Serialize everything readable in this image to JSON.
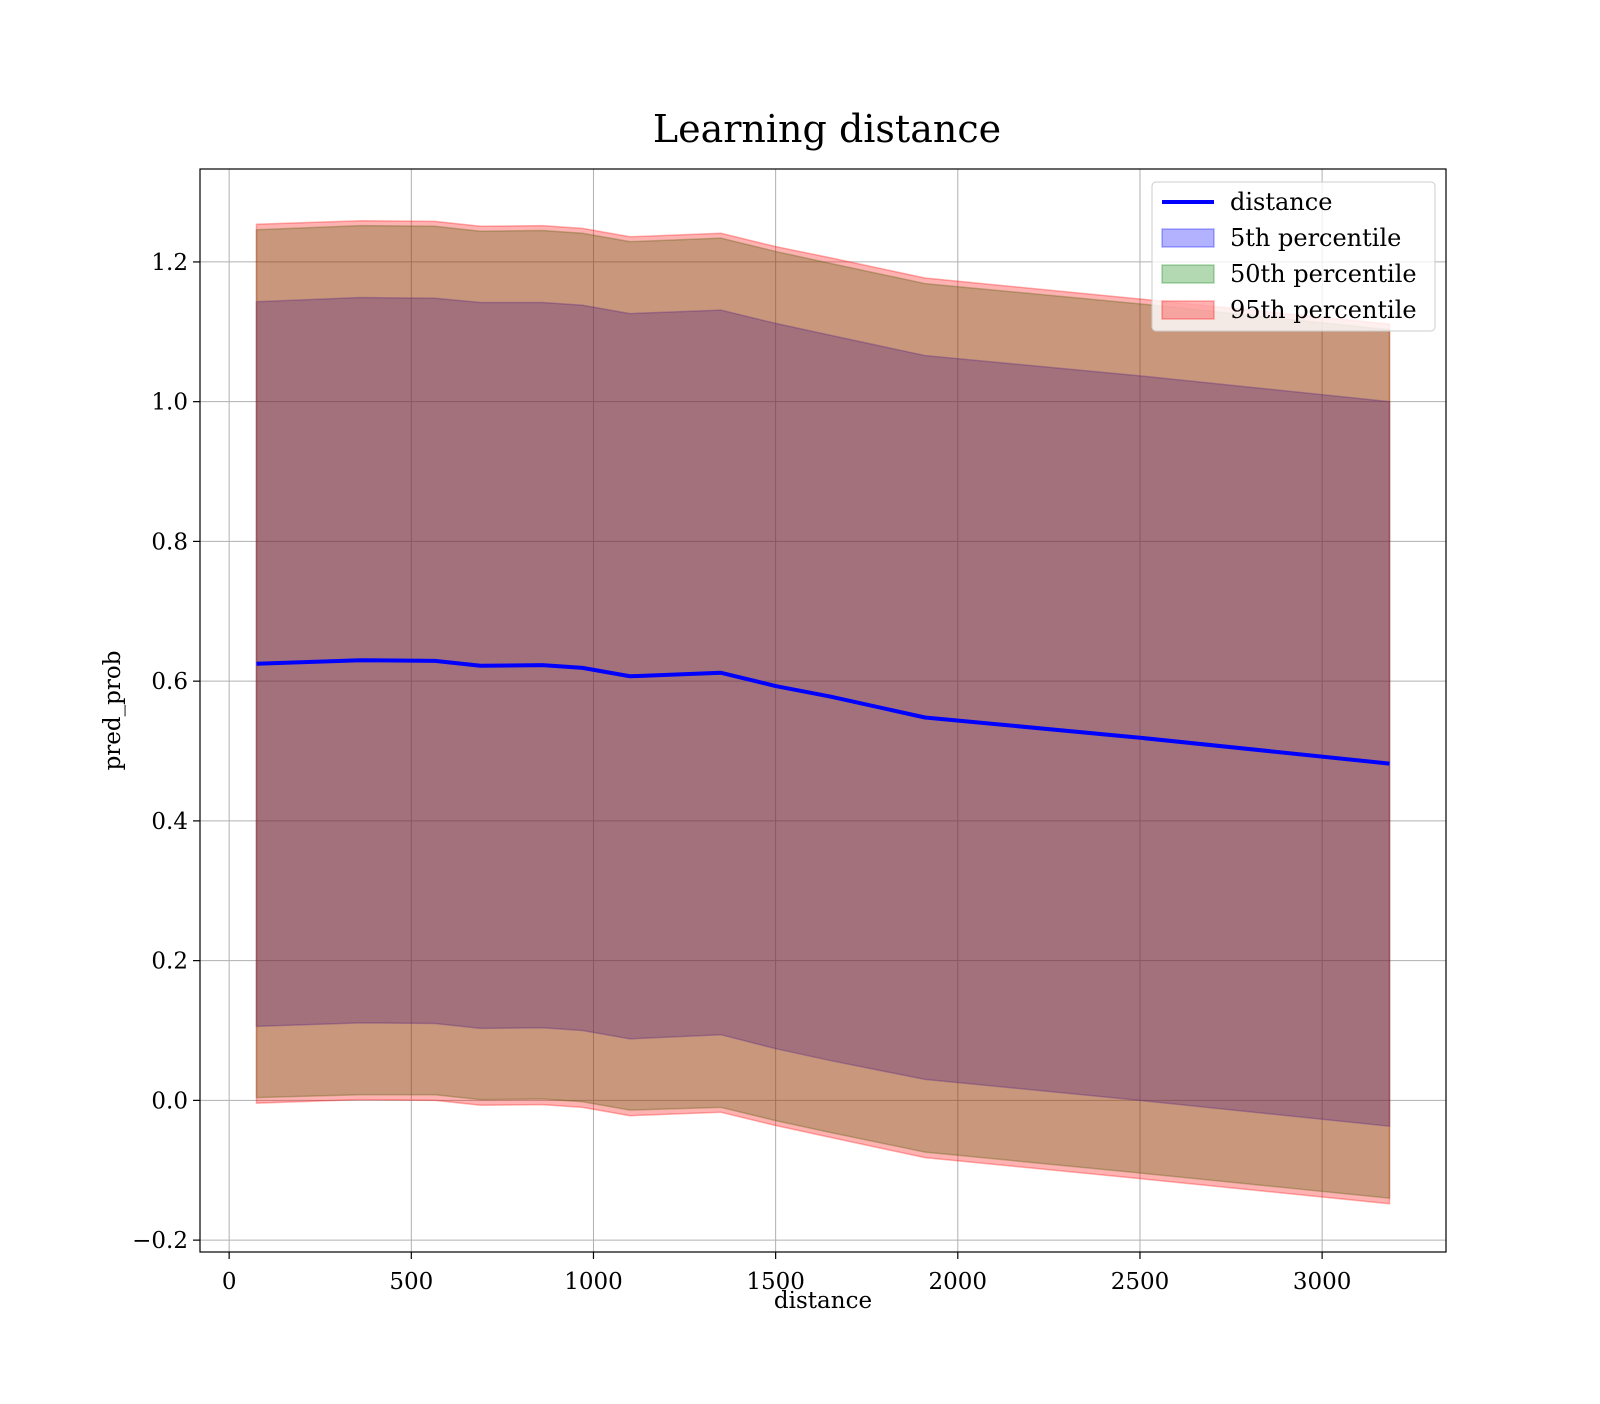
{
  "chart_data": {
    "type": "area",
    "title": "Learning distance",
    "xlabel": "distance",
    "ylabel": "pred_prob",
    "xlim": [
      -80,
      3340
    ],
    "ylim": [
      -0.217,
      1.333
    ],
    "x_ticks": [
      0,
      500,
      1000,
      1500,
      2000,
      2500,
      3000
    ],
    "x_tick_labels": [
      "0",
      "500",
      "1000",
      "1500",
      "2000",
      "2500",
      "3000"
    ],
    "y_ticks": [
      -0.2,
      0.0,
      0.2,
      0.4,
      0.6,
      0.8,
      1.0,
      1.2
    ],
    "y_tick_labels": [
      "−0.2",
      "0.0",
      "0.2",
      "0.4",
      "0.6",
      "0.8",
      "1.0",
      "1.2"
    ],
    "grid": true,
    "legend_position": "top-right",
    "x": [
      75,
      360,
      565,
      690,
      860,
      970,
      1100,
      1350,
      1500,
      1650,
      1910,
      2500,
      3185
    ],
    "series": [
      {
        "name": "distance",
        "kind": "line",
        "color": "#0000ff",
        "values": [
          0.625,
          0.63,
          0.629,
          0.622,
          0.623,
          0.619,
          0.607,
          0.612,
          0.593,
          0.578,
          0.548,
          0.519,
          0.482
        ]
      },
      {
        "name": "5th percentile",
        "kind": "band",
        "color": "#0000ff",
        "lower": [
          0.106,
          0.111,
          0.11,
          0.103,
          0.104,
          0.1,
          0.088,
          0.094,
          0.074,
          0.057,
          0.03,
          0.0,
          -0.037
        ],
        "upper": [
          1.143,
          1.149,
          1.148,
          1.142,
          1.142,
          1.138,
          1.126,
          1.131,
          1.112,
          1.095,
          1.066,
          1.037,
          1.0
        ]
      },
      {
        "name": "50th percentile",
        "kind": "band",
        "color": "#008000",
        "lower": [
          0.004,
          0.008,
          0.008,
          0.001,
          0.002,
          -0.002,
          -0.014,
          -0.01,
          -0.029,
          -0.046,
          -0.074,
          -0.104,
          -0.14
        ],
        "upper": [
          1.246,
          1.252,
          1.251,
          1.244,
          1.245,
          1.241,
          1.229,
          1.234,
          1.215,
          1.198,
          1.169,
          1.14,
          1.103
        ]
      },
      {
        "name": "95th percentile",
        "kind": "band",
        "color": "#ff0000",
        "lower": [
          -0.004,
          0.001,
          0.0,
          -0.007,
          -0.006,
          -0.01,
          -0.022,
          -0.017,
          -0.036,
          -0.053,
          -0.082,
          -0.112,
          -0.148
        ],
        "upper": [
          1.254,
          1.259,
          1.258,
          1.251,
          1.252,
          1.248,
          1.236,
          1.241,
          1.222,
          1.206,
          1.177,
          1.147,
          1.111
        ]
      }
    ]
  }
}
